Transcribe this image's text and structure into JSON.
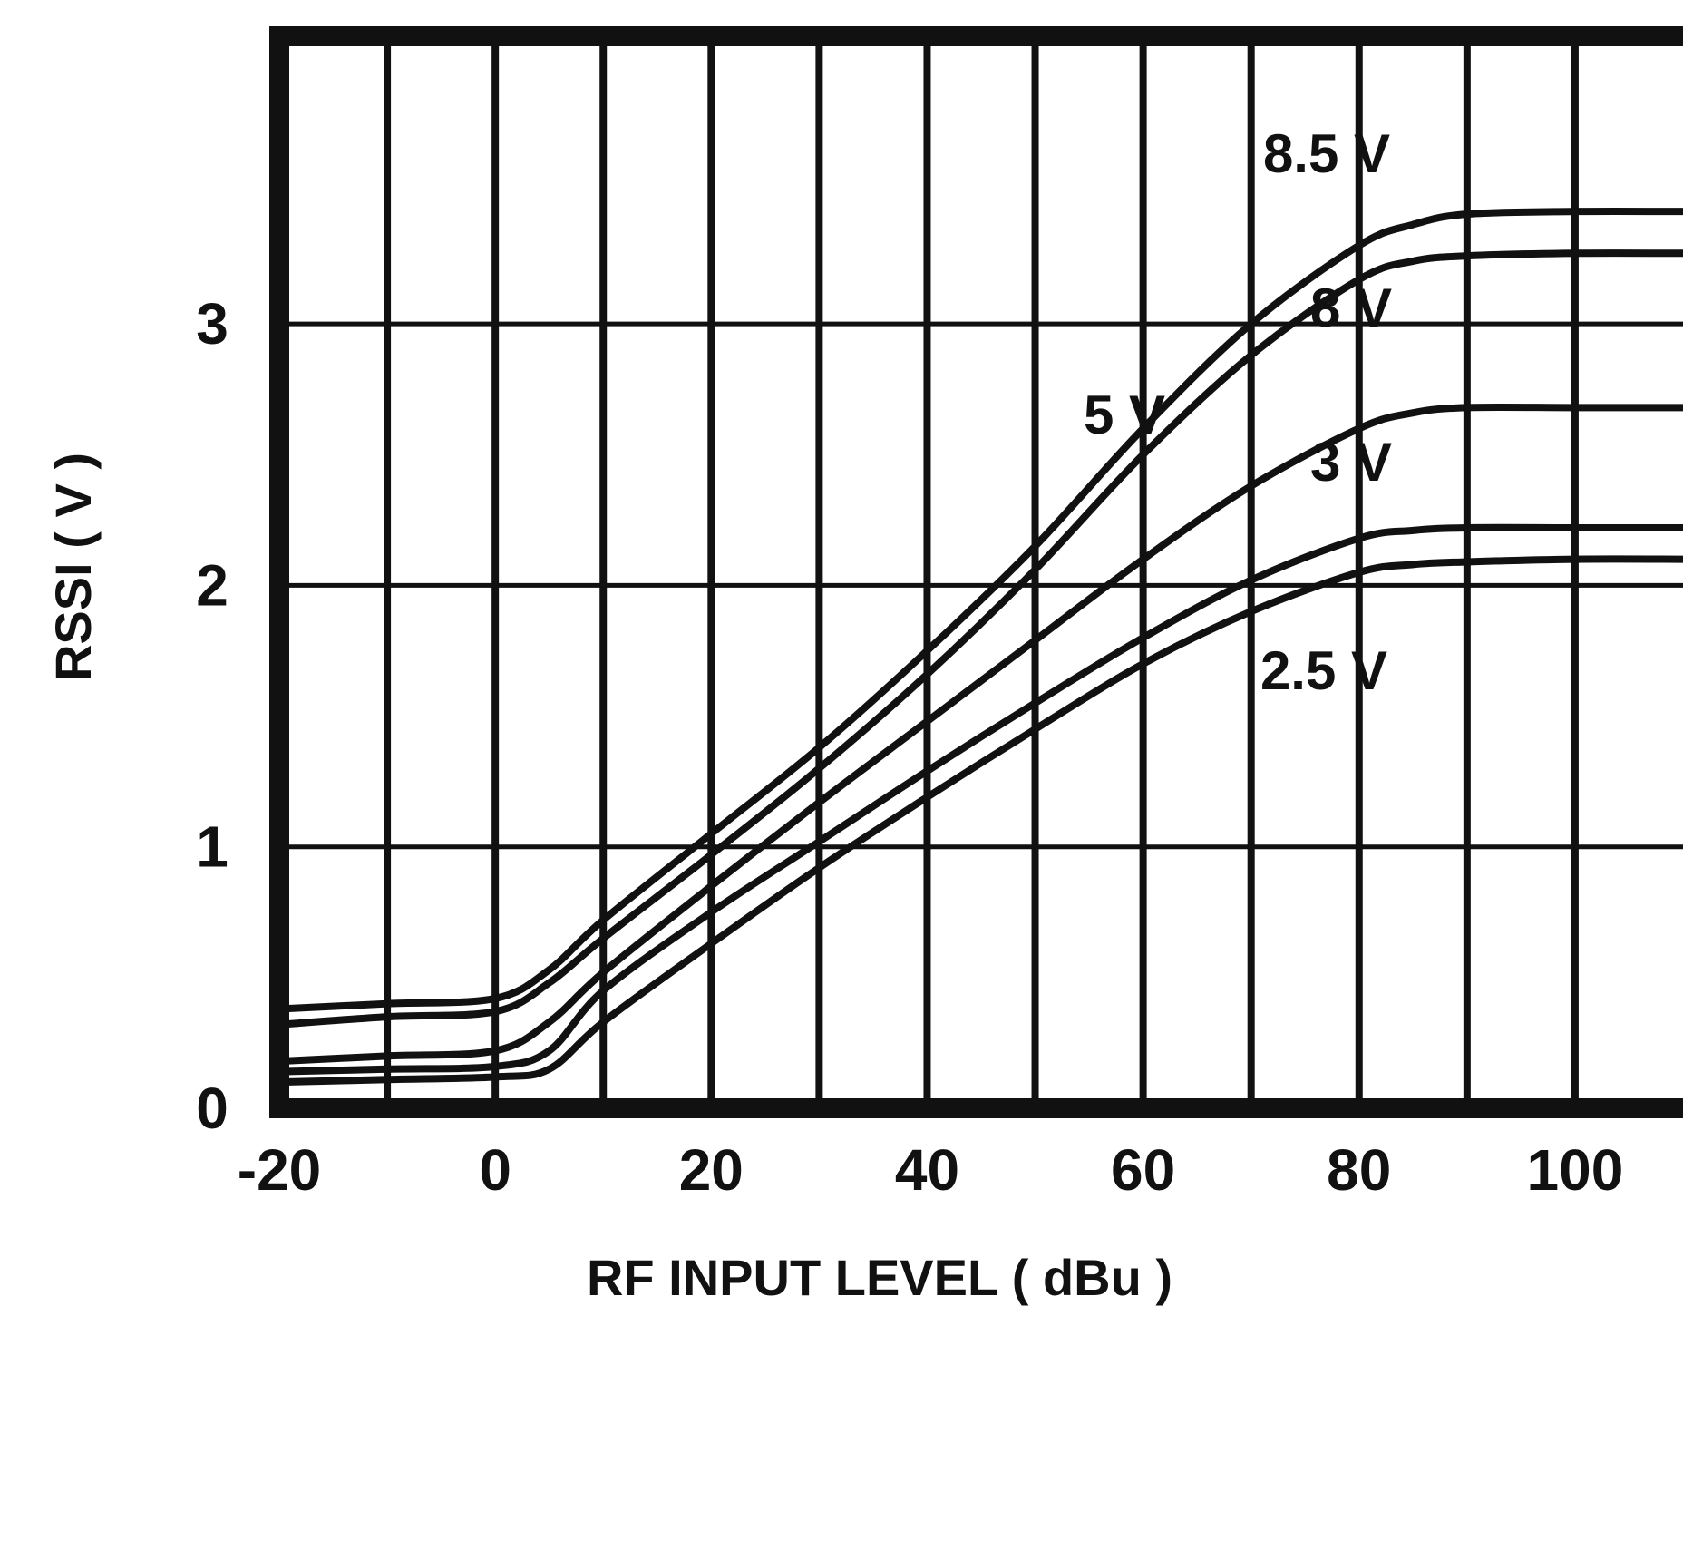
{
  "chart_data": {
    "type": "line",
    "title": "",
    "xlabel": "RF INPUT LEVEL ( dBu )",
    "ylabel": "RSSI ( V )",
    "xlim": [
      -20,
      110
    ],
    "ylim": [
      0,
      4.1
    ],
    "x_ticks": [
      -20,
      0,
      20,
      40,
      60,
      80,
      100
    ],
    "y_ticks": [
      0,
      1,
      2,
      3
    ],
    "grid": true,
    "legend": "inline labels at curve ends",
    "series": [
      {
        "name": "8.5 V",
        "x": [
          -20,
          -10,
          0,
          5,
          10,
          20,
          30,
          40,
          50,
          60,
          70,
          80,
          85,
          90,
          100,
          110
        ],
        "y": [
          0.38,
          0.4,
          0.42,
          0.53,
          0.72,
          1.05,
          1.38,
          1.75,
          2.15,
          2.6,
          3.0,
          3.3,
          3.38,
          3.42,
          3.43,
          3.43
        ]
      },
      {
        "name": "8 V",
        "x": [
          -20,
          -10,
          0,
          5,
          10,
          20,
          30,
          40,
          50,
          60,
          70,
          80,
          85,
          90,
          100,
          110
        ],
        "y": [
          0.32,
          0.35,
          0.37,
          0.48,
          0.65,
          0.97,
          1.3,
          1.66,
          2.06,
          2.5,
          2.88,
          3.17,
          3.24,
          3.26,
          3.27,
          3.27
        ]
      },
      {
        "name": "5 V",
        "x": [
          -20,
          -10,
          0,
          5,
          10,
          20,
          30,
          40,
          50,
          60,
          70,
          80,
          85,
          90,
          100,
          110
        ],
        "y": [
          0.18,
          0.2,
          0.22,
          0.33,
          0.52,
          0.85,
          1.17,
          1.48,
          1.79,
          2.1,
          2.38,
          2.6,
          2.66,
          2.68,
          2.68,
          2.68
        ]
      },
      {
        "name": "3 V",
        "x": [
          -20,
          -10,
          0,
          5,
          10,
          20,
          30,
          40,
          50,
          60,
          70,
          80,
          85,
          90,
          100,
          110
        ],
        "y": [
          0.14,
          0.15,
          0.16,
          0.22,
          0.45,
          0.75,
          1.02,
          1.29,
          1.55,
          1.8,
          2.02,
          2.18,
          2.21,
          2.22,
          2.22,
          2.22
        ]
      },
      {
        "name": "2.5 V",
        "x": [
          -20,
          -10,
          0,
          5,
          10,
          20,
          30,
          40,
          50,
          60,
          70,
          80,
          85,
          90,
          100,
          110
        ],
        "y": [
          0.1,
          0.11,
          0.12,
          0.15,
          0.33,
          0.63,
          0.92,
          1.19,
          1.45,
          1.7,
          1.9,
          2.05,
          2.08,
          2.09,
          2.1,
          2.1
        ]
      }
    ]
  }
}
